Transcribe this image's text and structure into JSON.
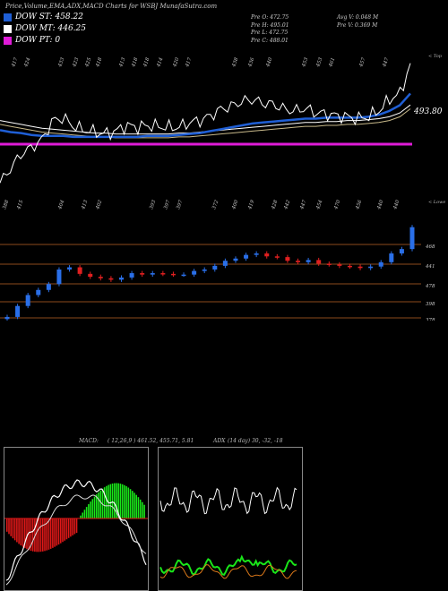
{
  "title": "Price,Volume,EMA,ADX,MACD Charts for WSBJ MunafaSutra.com",
  "legend": [
    {
      "label": "DOW ST: 458.22",
      "color": "#1f5fd6"
    },
    {
      "label": "DOW MT: 446.25",
      "color": "#ffffff"
    },
    {
      "label": "DOW PT: 0",
      "color": "#e01bd8"
    }
  ],
  "stats": {
    "col1": [
      "Pre   O: 472.75",
      "Pre   H: 495.01",
      "Pre   L: 472.75",
      "Pre   C: 488.01"
    ],
    "col2": [
      "Avg V: 0.048 M",
      "Pre   V: 0.369 M"
    ]
  },
  "top_panel": {
    "label": "< Top",
    "last_price_label": "493.80",
    "volume_labels": [
      "417",
      "424",
      "433",
      "423",
      "425",
      "418",
      "413",
      "418",
      "418",
      "414",
      "420",
      "417",
      "438",
      "436",
      "440",
      "453",
      "453",
      "461",
      "457",
      "447"
    ]
  },
  "bottom_panel": {
    "label": "< Lowe",
    "low_labels": [
      "388",
      "415",
      "404",
      "413",
      "402",
      "393",
      "397",
      "397",
      "372",
      "400",
      "419",
      "428",
      "442",
      "447",
      "454",
      "470",
      "456",
      "440",
      "440"
    ],
    "price_levels": [
      "468",
      "441",
      "478",
      "398",
      "378"
    ],
    "level_colors": {
      "line": "#8b4a1c"
    }
  },
  "macd_panel": {
    "label": "MACD:",
    "values": "( 12,26,9 ) 461.52,  455.71,  5.81"
  },
  "adx_panel": {
    "label": "ADX",
    "values": "(14  day) 30,  -32,  -18"
  },
  "chart_data": {
    "type": "line",
    "title": "Price,Volume,EMA,ADX,MACD Charts for WSBJ MunafaSutra.com",
    "close": [
      365,
      380,
      395,
      402,
      410,
      430,
      433,
      424,
      420,
      418,
      416,
      419,
      425,
      423,
      425,
      424,
      423,
      423,
      428,
      430,
      435,
      442,
      445,
      450,
      452,
      448,
      447,
      442,
      440,
      443,
      438,
      437,
      435,
      434,
      432,
      434,
      440,
      452,
      458,
      488
    ],
    "ema_short": [
      420,
      418,
      417,
      415,
      414,
      414,
      414,
      413,
      413,
      413,
      413,
      413,
      413,
      413,
      414,
      414,
      414,
      415,
      416,
      417,
      419,
      421,
      423,
      425,
      427,
      428,
      429,
      430,
      431,
      432,
      432,
      433,
      433,
      433,
      433,
      434,
      436,
      440,
      446,
      458.22
    ],
    "ema_mid": [
      430,
      428,
      426,
      424,
      422,
      421,
      420,
      419,
      418,
      417,
      417,
      416,
      416,
      416,
      416,
      416,
      416,
      417,
      417,
      418,
      419,
      420,
      421,
      422,
      423,
      424,
      425,
      426,
      427,
      428,
      428,
      429,
      429,
      430,
      430,
      431,
      432,
      434,
      438,
      446.25
    ],
    "dow_pt": 0,
    "macd": {
      "params": "12,26,9",
      "macd": 461.52,
      "signal": 455.71,
      "histogram": 5.81
    },
    "adx": {
      "period": 14,
      "values": [
        30,
        -32,
        -18
      ]
    }
  }
}
